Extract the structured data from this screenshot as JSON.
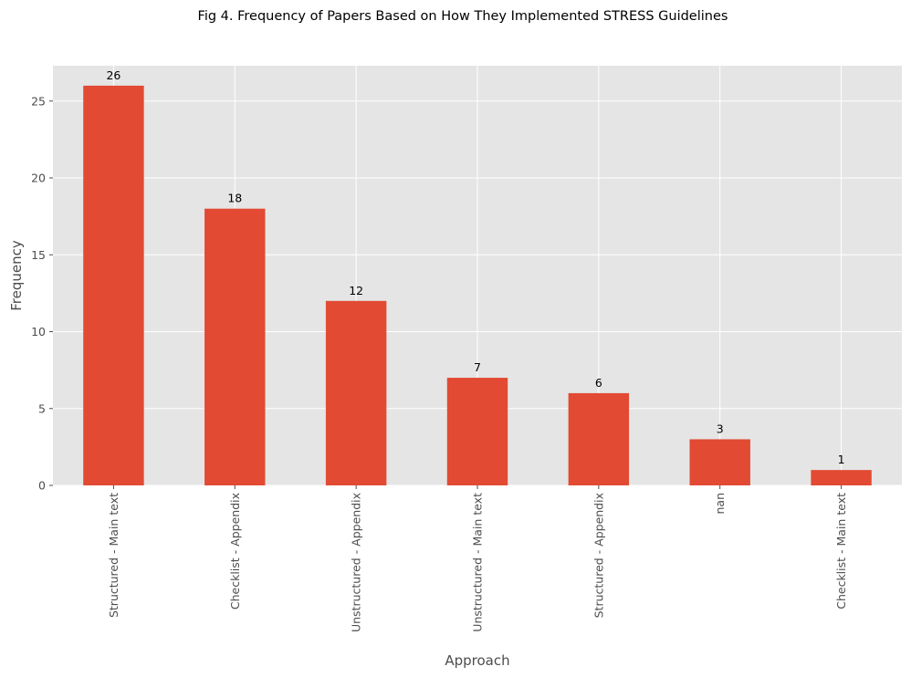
{
  "chart_data": {
    "type": "bar",
    "title": "Fig 4. Frequency of Papers Based on How They Implemented STRESS Guidelines",
    "xlabel": "Approach",
    "ylabel": "Frequency",
    "categories": [
      "Structured - Main text",
      "Checklist - Appendix",
      "Unstructured - Appendix",
      "Unstructured - Main text",
      "Structured - Appendix",
      "nan",
      "Checklist - Main text"
    ],
    "values": [
      26,
      18,
      12,
      7,
      6,
      3,
      1
    ],
    "ylim": [
      0,
      27.3
    ],
    "yticks": [
      0,
      5,
      10,
      15,
      20,
      25
    ],
    "grid": true,
    "bar_color": "#E24A33",
    "plot_background": "#E5E5E5"
  }
}
